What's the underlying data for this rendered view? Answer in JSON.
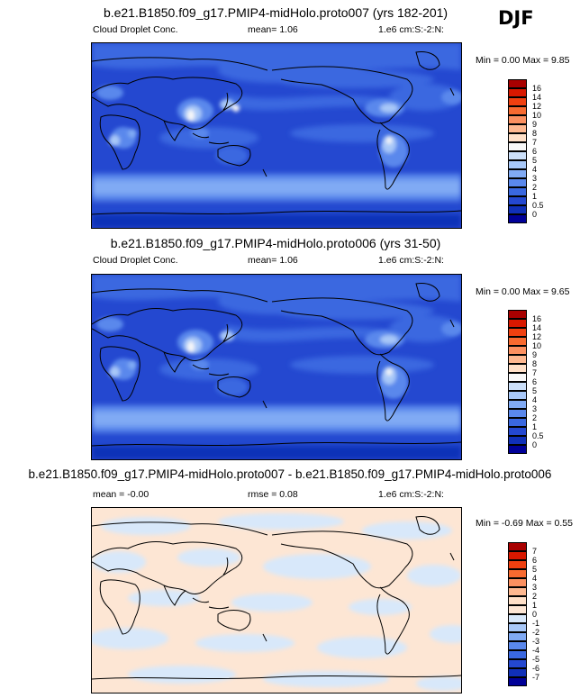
{
  "season": "DJF",
  "panels": [
    {
      "title": "b.e21.B1850.f09_g17.PMIP4-midHolo.proto007 (yrs 182-201)",
      "variable": "Cloud Droplet Conc.",
      "stat1": "mean=   1.06",
      "units": "1.e6 cm:S:-2:N:",
      "minmax": "Min =   0.00 Max =   9.85",
      "colorbar": {
        "labels": [
          "16",
          "14",
          "12",
          "10",
          "9",
          "8",
          "7",
          "6",
          "5",
          "4",
          "3",
          "2",
          "1",
          "0.5",
          "0"
        ],
        "colors": [
          "#a80000",
          "#d81800",
          "#f04010",
          "#f86a30",
          "#fc9060",
          "#feb890",
          "#ffe0c8",
          "#f8f8f8",
          "#cce0fa",
          "#a8c8f8",
          "#80aaf4",
          "#5a88ec",
          "#3a68e0",
          "#2448d0",
          "#1030b8",
          "#000098"
        ]
      }
    },
    {
      "title": "b.e21.B1850.f09_g17.PMIP4-midHolo.proto006 (yrs 31-50)",
      "variable": "Cloud Droplet Conc.",
      "stat1": "mean=   1.06",
      "units": "1.e6 cm:S:-2:N:",
      "minmax": "Min =   0.00 Max =   9.65",
      "colorbar": {
        "labels": [
          "16",
          "14",
          "12",
          "10",
          "9",
          "8",
          "7",
          "6",
          "5",
          "4",
          "3",
          "2",
          "1",
          "0.5",
          "0"
        ],
        "colors": [
          "#a80000",
          "#d81800",
          "#f04010",
          "#f86a30",
          "#fc9060",
          "#feb890",
          "#ffe0c8",
          "#f8f8f8",
          "#cce0fa",
          "#a8c8f8",
          "#80aaf4",
          "#5a88ec",
          "#3a68e0",
          "#2448d0",
          "#1030b8",
          "#000098"
        ]
      }
    },
    {
      "title": "b.e21.B1850.f09_g17.PMIP4-midHolo.proto007 - b.e21.B1850.f09_g17.PMIP4-midHolo.proto006",
      "stat1": "mean =  -0.00",
      "stat2": "rmse =   0.08",
      "units": "1.e6 cm:S:-2:N:",
      "minmax": "Min =  -0.69 Max =   0.55",
      "colorbar": {
        "labels": [
          "7",
          "6",
          "5",
          "4",
          "3",
          "2",
          "1",
          "0",
          "-1",
          "-2",
          "-3",
          "-4",
          "-5",
          "-6",
          "-7"
        ],
        "colors": [
          "#a80000",
          "#d81800",
          "#f04010",
          "#f86a30",
          "#fc9060",
          "#feb890",
          "#ffe0c8",
          "#fde6d4",
          "#d8e8fa",
          "#a8c8f8",
          "#80aaf4",
          "#5a88ec",
          "#3a68e0",
          "#2448d0",
          "#1030b8",
          "#000098"
        ]
      }
    }
  ]
}
